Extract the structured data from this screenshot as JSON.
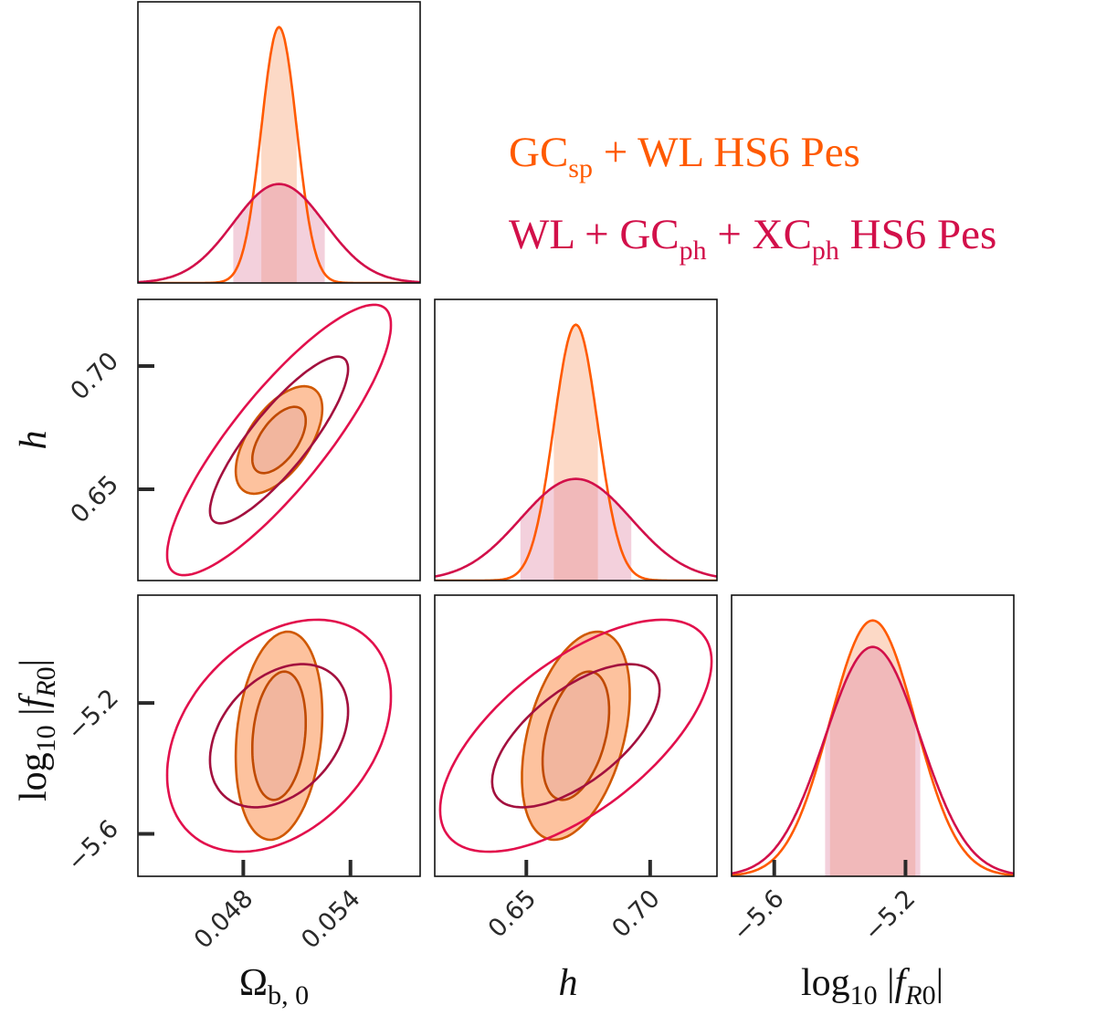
{
  "chart_data": {
    "type": "corner",
    "contour_levels": [
      0.68,
      0.95
    ],
    "shaded_interval_1d": 0.68,
    "parameters": [
      {
        "label_parts": [
          {
            "t": "Ω"
          },
          {
            "t": "b, 0",
            "sub": true
          }
        ],
        "range": [
          0.0421,
          0.0579
        ],
        "ticks": [
          0.048,
          0.054
        ],
        "tick_labels": [
          "0.048",
          "0.054"
        ]
      },
      {
        "label_parts": [
          {
            "t": "h",
            "it": true
          }
        ],
        "range": [
          0.613,
          0.727
        ],
        "ticks": [
          0.65,
          0.7
        ],
        "tick_labels": [
          "0.65",
          "0.70"
        ]
      },
      {
        "label_parts": [
          {
            "t": "log"
          },
          {
            "t": "10",
            "sub": true
          },
          {
            "t": " |"
          },
          {
            "t": "f",
            "it": true
          },
          {
            "t": "R",
            "sub": true,
            "it": true
          },
          {
            "t": "0",
            "sub": true
          },
          {
            "t": "|"
          }
        ],
        "range": [
          -5.73,
          -4.87
        ],
        "ticks": [
          -5.6,
          -5.2
        ],
        "tick_labels": [
          "−5.6",
          "−5.2"
        ]
      }
    ],
    "series": [
      {
        "label_parts": [
          {
            "t": "GC"
          },
          {
            "t": "sp",
            "sub": true
          },
          {
            "t": " + WL HS6 Pes"
          }
        ],
        "color": "#ff5a00",
        "contour_stroke": "#d05800",
        "fill_95": "#fdc29e",
        "fill_68": "#f2b69e",
        "band_fill": "#fcd9c6",
        "mean": [
          0.05,
          0.67,
          -5.3
        ],
        "sigma": [
          0.00099,
          0.0089,
          0.13
        ],
        "correlation": [
          [
            1,
            0.58,
            0.2
          ],
          [
            0.58,
            1,
            0.4
          ],
          [
            0.2,
            0.4,
            1
          ]
        ]
      },
      {
        "label_parts": [
          {
            "t": "WL + GC"
          },
          {
            "t": "ph",
            "sub": true
          },
          {
            "t": " + XC"
          },
          {
            "t": "ph",
            "sub": true
          },
          {
            "t": " HS6 Pes"
          }
        ],
        "color": "#d2104a",
        "contour_stroke_95": "#e2104c",
        "contour_stroke_68": "#a3103e",
        "band_fill": "#e08aa8",
        "mean": [
          0.05,
          0.67,
          -5.3
        ],
        "sigma": [
          0.00256,
          0.0224,
          0.145
        ],
        "correlation": [
          [
            1,
            0.85,
            0.34
          ],
          [
            0.85,
            1,
            0.64
          ],
          [
            0.34,
            0.64,
            1
          ]
        ]
      }
    ]
  }
}
